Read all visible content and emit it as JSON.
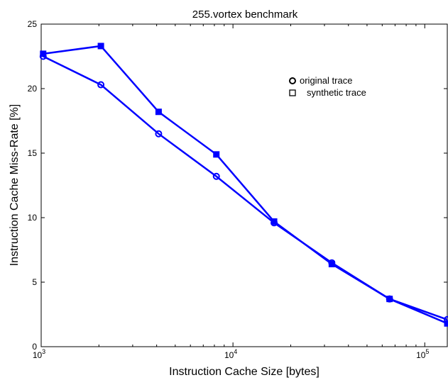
{
  "chart_data": {
    "type": "line",
    "title": "255.vortex benchmark",
    "xlabel": "Instruction Cache Size [bytes]",
    "ylabel": "Instruction Cache Miss-Rate [%]",
    "xscale": "log",
    "xlim": [
      1000,
      131072
    ],
    "ylim": [
      0,
      25
    ],
    "yticks": [
      "0",
      "5",
      "10",
      "15",
      "20",
      "25"
    ],
    "xticks": [
      {
        "value": 1000,
        "label": "10",
        "exp": "3"
      },
      {
        "value": 10000,
        "label": "10",
        "exp": "4"
      },
      {
        "value": 100000,
        "label": "10",
        "exp": "5"
      }
    ],
    "grid": false,
    "legend_position": "top-right",
    "line_color": "#0000ff",
    "series": [
      {
        "name": "original trace",
        "marker": "circle",
        "x": [
          1024,
          2048,
          4096,
          8192,
          16384,
          32768,
          65536,
          131072
        ],
        "values": [
          22.5,
          20.3,
          16.5,
          13.2,
          9.6,
          6.5,
          3.7,
          2.1
        ]
      },
      {
        "name": "synthetic trace",
        "marker": "square",
        "x": [
          1024,
          2048,
          4096,
          8192,
          16384,
          32768,
          65536,
          131072
        ],
        "values": [
          22.7,
          23.3,
          18.2,
          14.9,
          9.7,
          6.4,
          3.7,
          1.8
        ]
      }
    ]
  }
}
